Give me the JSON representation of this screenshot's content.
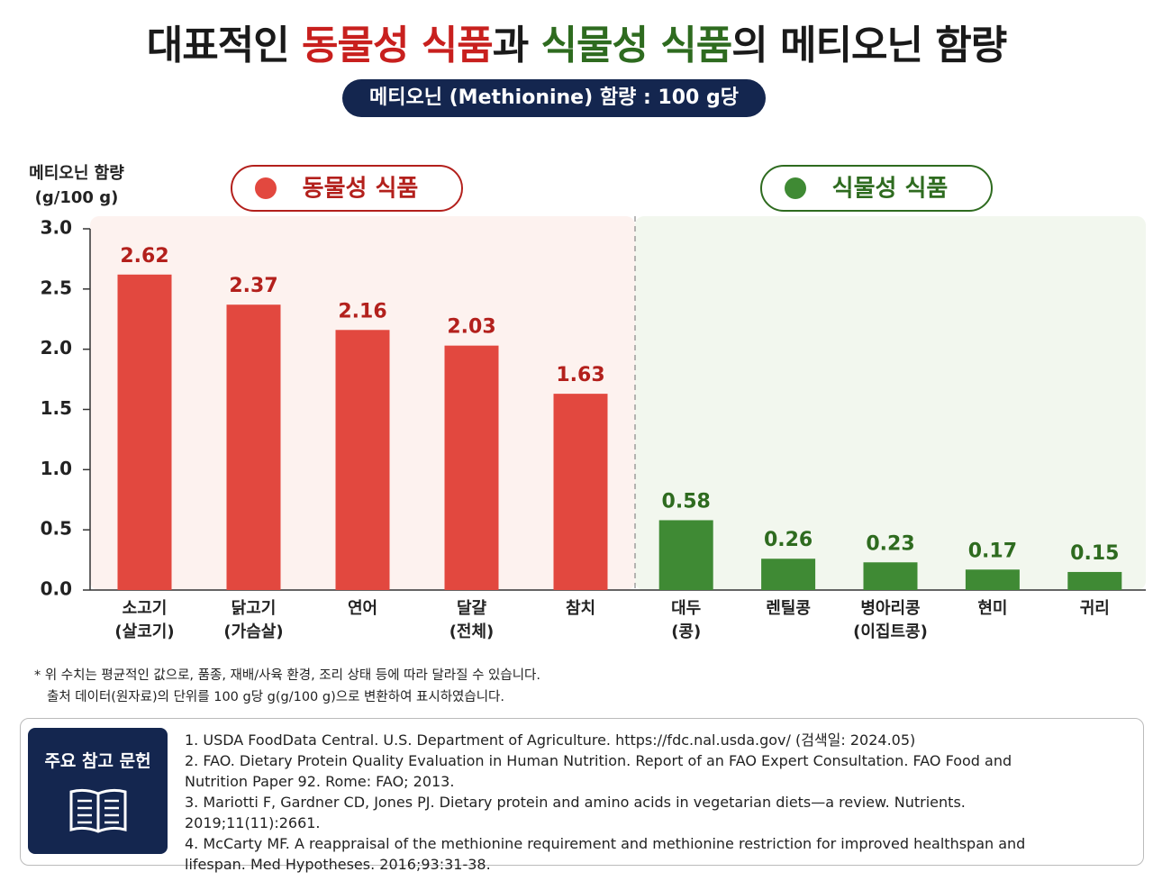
{
  "chart_data": {
    "type": "bar",
    "title_parts": [
      {
        "text": "대표적인 ",
        "color": "#1a1a1a"
      },
      {
        "text": "동물성 식품",
        "color": "#c8201e"
      },
      {
        "text": "과 ",
        "color": "#1a1a1a"
      },
      {
        "text": "식물성 식품",
        "color": "#2e6b1f"
      },
      {
        "text": "의 메티오닌 함량",
        "color": "#1a1a1a"
      }
    ],
    "subtitle": "메티오닌 (Methionine) 함량 : 100 g당",
    "y_label": [
      "메티오닌 함량",
      "(g/100 g)"
    ],
    "ylim": [
      0,
      3
    ],
    "yticks": [
      {
        "value": 0,
        "label": "0.0"
      },
      0.5,
      {
        "value": 1,
        "label": "1.0"
      },
      1.5,
      {
        "value": 2,
        "label": "2.0"
      },
      2.5,
      {
        "value": 3,
        "label": "3.0"
      }
    ],
    "panels": [
      {
        "name": "동물성 식품",
        "color": "#e2483f",
        "label_color": "#b3201c",
        "background": "#fdf2ef",
        "categories": [
          "소고기",
          "닭고기",
          "연어",
          "달걀",
          "참치"
        ],
        "notes": [
          "(살코기)",
          "(가슴살)",
          null,
          "(전체)",
          null
        ],
        "values": [
          2.62,
          2.37,
          2.16,
          2.03,
          1.63
        ]
      },
      {
        "name": "식물성 식품",
        "color": "#3f8a34",
        "label_color": "#2e6b1f",
        "background": "#f2f7ee",
        "categories": [
          "대두",
          "렌틸콩",
          "병아리콩",
          "현미",
          "귀리"
        ],
        "notes": [
          "(콩)",
          null,
          "(이집트콩)",
          null,
          null
        ],
        "values": [
          0.58,
          0.26,
          0.23,
          0.17,
          0.15
        ]
      }
    ],
    "footnote": [
      "* 위 수치는 평균적인 값으로, 품종, 재배/사육 환경, 조리 상태 등에 따라 달라질 수 있습니다.",
      "출처 데이터(원자료)의 단위를 100 g당 g(g/100 g)으로 변환하여 표시하였습니다."
    ],
    "references_title": "주요 참고 문헌",
    "references": [
      "1. USDA FoodData Central. U.S. Department of Agriculture. https://fdc.nal.usda.gov/ (검색일: 2024.05)",
      "2. FAO. Dietary Protein Quality Evaluation in Human Nutrition. Report of an FAO Expert Consultation. FAO Food and Nutrition Paper 92. Rome: FAO; 2013.",
      "3. Mariotti F, Gardner CD, Jones PJ. Dietary protein and amino acids in vegetarian diets—a review. Nutrients. 2019;11(11):2661.",
      "4. McCarty MF. A reappraisal of the methionine requirement and methionine restriction for improved healthspan and lifespan. Med Hypotheses. 2016;93:31-38."
    ]
  }
}
